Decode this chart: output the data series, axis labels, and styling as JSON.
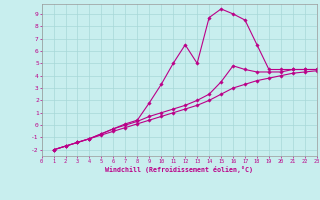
{
  "xlabel": "Windchill (Refroidissement éolien,°C)",
  "bg_color": "#c8eeee",
  "grid_color": "#a8d8d8",
  "line_color": "#bb0088",
  "xlim": [
    0,
    23
  ],
  "ylim": [
    -2.5,
    9.8
  ],
  "xticks": [
    0,
    1,
    2,
    3,
    4,
    5,
    6,
    7,
    8,
    9,
    10,
    11,
    12,
    13,
    14,
    15,
    16,
    17,
    18,
    19,
    20,
    21,
    22,
    23
  ],
  "yticks": [
    -2,
    -1,
    0,
    1,
    2,
    3,
    4,
    5,
    6,
    7,
    8,
    9
  ],
  "series1_x": [
    1,
    2,
    3,
    4,
    5,
    6,
    7,
    8,
    9,
    10,
    11,
    12,
    13,
    14,
    15,
    16,
    17,
    18,
    19,
    20,
    21,
    22,
    23
  ],
  "series1_y": [
    -2,
    -1.7,
    -1.4,
    -1.1,
    -0.8,
    -0.5,
    -0.2,
    0.1,
    0.4,
    0.7,
    1.0,
    1.3,
    1.6,
    2.0,
    2.5,
    3.0,
    3.3,
    3.6,
    3.8,
    4.0,
    4.2,
    4.3,
    4.4
  ],
  "series2_x": [
    1,
    2,
    3,
    4,
    5,
    6,
    7,
    8,
    9,
    10,
    11,
    12,
    13,
    14,
    15,
    16,
    17,
    18,
    19,
    20,
    21,
    22,
    23
  ],
  "series2_y": [
    -2,
    -1.7,
    -1.4,
    -1.1,
    -0.7,
    -0.3,
    0.1,
    0.4,
    1.8,
    3.3,
    5.0,
    6.5,
    5.0,
    8.7,
    9.4,
    9.0,
    8.5,
    6.5,
    4.5,
    4.5,
    4.5,
    4.5,
    4.5
  ],
  "series3_x": [
    1,
    2,
    3,
    4,
    5,
    6,
    7,
    8,
    9,
    10,
    11,
    12,
    13,
    14,
    15,
    16,
    17,
    18,
    19,
    20,
    21,
    22,
    23
  ],
  "series3_y": [
    -2,
    -1.7,
    -1.4,
    -1.1,
    -0.7,
    -0.3,
    0.0,
    0.3,
    0.7,
    1.0,
    1.3,
    1.6,
    2.0,
    2.5,
    3.5,
    4.8,
    4.5,
    4.3,
    4.3,
    4.3,
    4.5,
    4.5,
    4.5
  ]
}
